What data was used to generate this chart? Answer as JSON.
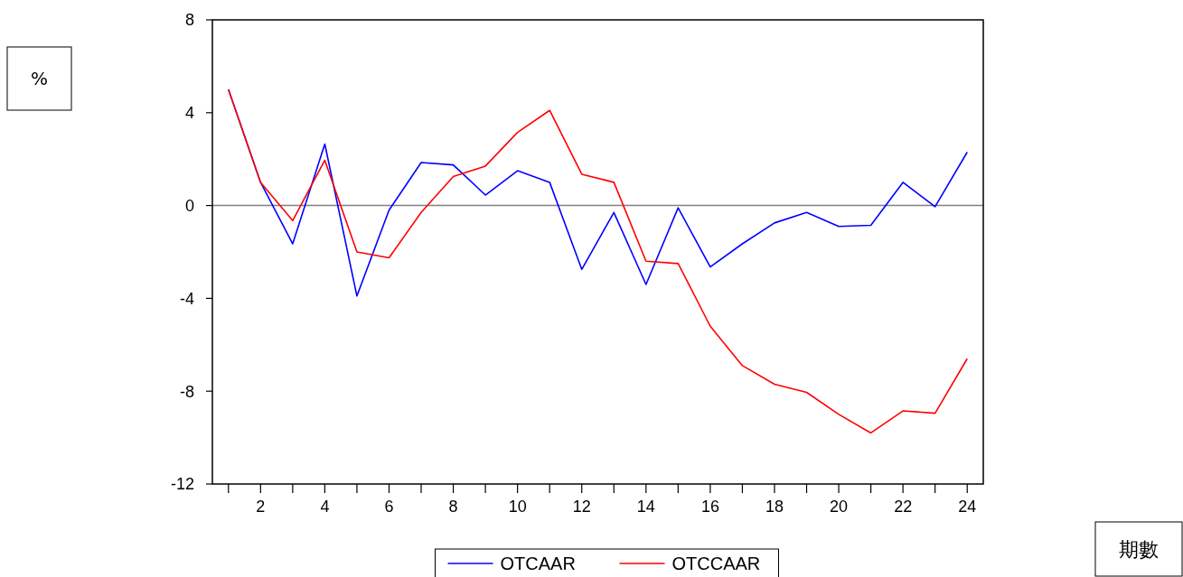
{
  "chart_data": {
    "type": "line",
    "annotations": [
      "%",
      "期數"
    ],
    "x": [
      1,
      2,
      3,
      4,
      5,
      6,
      7,
      8,
      9,
      10,
      11,
      12,
      13,
      14,
      15,
      16,
      17,
      18,
      19,
      20,
      21,
      22,
      23,
      24
    ],
    "xlim": [
      0.5,
      24.5
    ],
    "xticks": [
      {
        "value": 1,
        "label": null
      },
      2,
      {
        "value": 3,
        "label": null
      },
      4,
      {
        "value": 5,
        "label": null
      },
      6,
      {
        "value": 7,
        "label": null
      },
      8,
      {
        "value": 9,
        "label": null
      },
      10,
      {
        "value": 11,
        "label": null
      },
      12,
      {
        "value": 13,
        "label": null
      },
      14,
      {
        "value": 15,
        "label": null
      },
      16,
      {
        "value": 17,
        "label": null
      },
      18,
      {
        "value": 19,
        "label": null
      },
      20,
      {
        "value": 21,
        "label": null
      },
      22,
      {
        "value": 23,
        "label": null
      },
      24
    ],
    "ylim": [
      -12,
      8
    ],
    "yticks": [
      -12,
      -8,
      -4,
      0,
      4,
      8
    ],
    "grid": false,
    "legend": "bottom",
    "marker": "none",
    "line_style": "solid",
    "ref_lines": [
      {
        "axis": "y",
        "value": 0,
        "color": "#808080"
      }
    ],
    "series": [
      {
        "name": "OTCAAR",
        "color": "#0000ff",
        "values": [
          5.0,
          1.0,
          -1.65,
          2.65,
          -3.9,
          -0.2,
          1.85,
          1.75,
          0.45,
          1.5,
          1.0,
          -2.75,
          -0.3,
          -3.4,
          -0.1,
          -2.65,
          -1.65,
          -0.75,
          -0.3,
          -0.9,
          -0.85,
          1.0,
          -0.05,
          2.3
        ]
      },
      {
        "name": "OTCCAAR",
        "color": "#ff0000",
        "values": [
          5.0,
          1.0,
          -0.65,
          1.95,
          -2.0,
          -2.25,
          -0.3,
          1.25,
          1.7,
          3.15,
          4.1,
          1.35,
          1.0,
          -2.4,
          -2.5,
          -5.2,
          -6.9,
          -7.7,
          -8.05,
          -9.0,
          -9.8,
          -8.85,
          -8.95,
          -6.6
        ]
      }
    ]
  }
}
